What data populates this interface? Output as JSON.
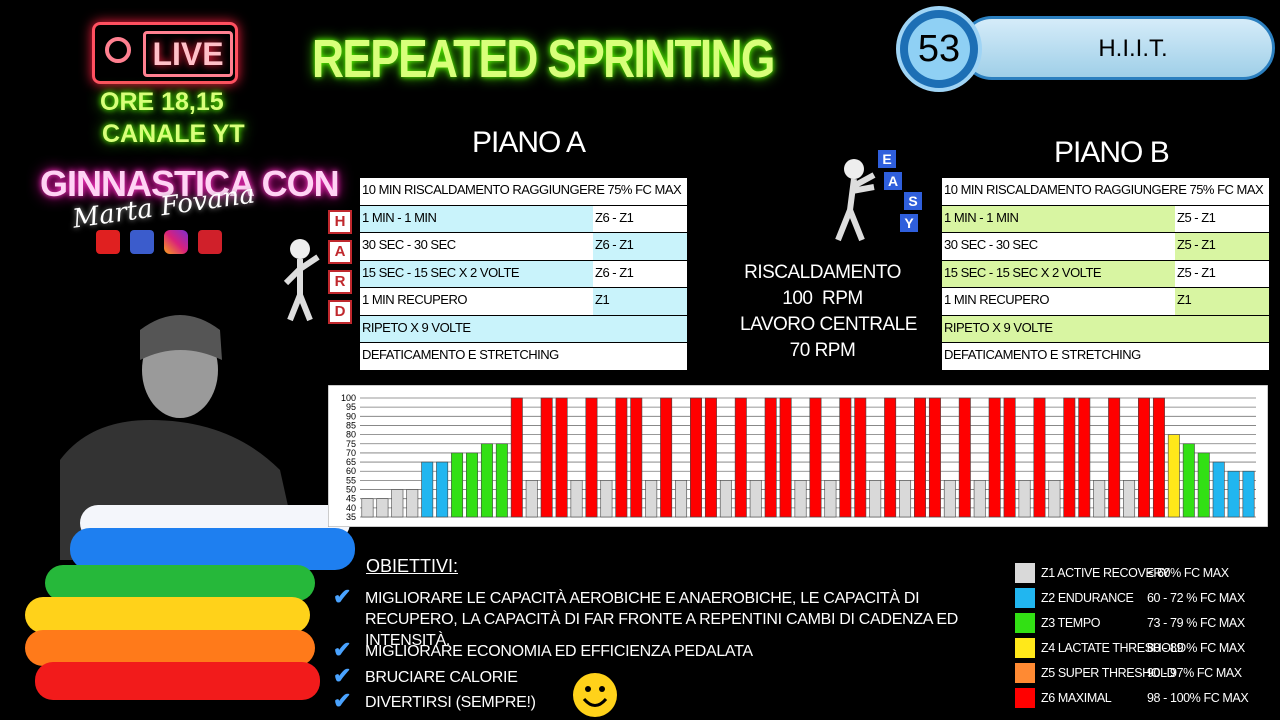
{
  "badge": {
    "live": "LIVE",
    "schedule": [
      "ORE 18,15",
      "CANALE YT"
    ],
    "show": "GINNASTICA CON",
    "host": "Marta Fovana"
  },
  "header": {
    "title": "REPEATED SPRINTING",
    "episode": "53",
    "tag": "H.I.I.T."
  },
  "plans": [
    {
      "title": "PIANO A",
      "color": "#c9f3fb",
      "rows": [
        [
          "10 MIN RISCALDAMENTO RAGGIUNGERE 75% FC MAX"
        ],
        [
          "1 MIN - 1 MIN",
          "Z6 - Z1"
        ],
        [
          "30 SEC - 30 SEC",
          "Z6 - Z1"
        ],
        [
          "15 SEC - 15 SEC X 2 VOLTE",
          "Z6 - Z1"
        ],
        [
          "1 MIN RECUPERO",
          "Z1"
        ],
        [
          "RIPETO X 9 VOLTE"
        ],
        [
          "DEFATICAMENTO E STRETCHING"
        ]
      ]
    },
    {
      "title": "PIANO B",
      "color": "#d8f5a2",
      "rows": [
        [
          "10 MIN RISCALDAMENTO RAGGIUNGERE 75% FC MAX"
        ],
        [
          "1 MIN - 1 MIN",
          "Z5 - Z1"
        ],
        [
          "30 SEC - 30 SEC",
          "Z5 - Z1"
        ],
        [
          "15 SEC - 15 SEC X 2 VOLTE",
          "Z5 - Z1"
        ],
        [
          "1 MIN RECUPERO",
          "Z1"
        ],
        [
          "RIPETO X 9 VOLTE"
        ],
        [
          "DEFATICAMENTO E STRETCHING"
        ]
      ]
    }
  ],
  "hard": [
    "H",
    "A",
    "R",
    "D"
  ],
  "easy": [
    "E",
    "A",
    "S",
    "Y"
  ],
  "cadence": [
    "RISCALDAMENTO",
    "100  RPM",
    "LAVORO CENTRALE",
    "70 RPM"
  ],
  "goals": {
    "title": "OBIETTIVI:",
    "items": [
      "MIGLIORARE LE CAPACITÀ AEROBICHE E ANAEROBICHE, LE CAPACITÀ DI RECUPERO, LA CAPACITÀ DI FAR FRONTE A REPENTINI CAMBI DI CADENZA ED INTENSITÀ.",
      "MIGLIORARE ECONOMIA ED EFFICIENZA PEDALATA",
      "BRUCIARE CALORIE",
      "DIVERTIRSI (SEMPRE!)"
    ]
  },
  "legend": [
    {
      "color": "#d9d9d9",
      "zone": "Z1 ACTIVE RECOVERY",
      "range": "< 60% FC MAX"
    },
    {
      "color": "#21b6f0",
      "zone": "Z2 ENDURANCE",
      "range": "60 - 72 % FC MAX"
    },
    {
      "color": "#32e014",
      "zone": "Z3 TEMPO",
      "range": "73 - 79 % FC MAX"
    },
    {
      "color": "#ffe81a",
      "zone": "Z4 LACTATE THRESHOLD",
      "range": "80 - 89 % FC MAX"
    },
    {
      "color": "#ff8a33",
      "zone": "Z5 SUPER THRESHOLD",
      "range": "90 - 97% FC MAX"
    },
    {
      "color": "#ff0000",
      "zone": "Z6 MAXIMAL",
      "range": "98 - 100% FC MAX"
    }
  ],
  "chart_data": {
    "type": "bar",
    "values": [
      45,
      45,
      50,
      50,
      65,
      65,
      70,
      70,
      75,
      75,
      100,
      55,
      100,
      100,
      55,
      100,
      55,
      100,
      100,
      55,
      100,
      55,
      100,
      100,
      55,
      100,
      55,
      100,
      100,
      55,
      100,
      55,
      100,
      100,
      55,
      100,
      55,
      100,
      100,
      55,
      100,
      55,
      100,
      100,
      55,
      100,
      55,
      100,
      100,
      55,
      100,
      55,
      100,
      100,
      80,
      75,
      70,
      65,
      60,
      60
    ],
    "colors": [
      "#d9d9d9",
      "#d9d9d9",
      "#d9d9d9",
      "#d9d9d9",
      "#21b6f0",
      "#21b6f0",
      "#32e014",
      "#32e014",
      "#32e014",
      "#32e014",
      "#ff0000",
      "#d9d9d9",
      "#ff0000",
      "#ff0000",
      "#d9d9d9",
      "#ff0000",
      "#d9d9d9",
      "#ff0000",
      "#ff0000",
      "#d9d9d9",
      "#ff0000",
      "#d9d9d9",
      "#ff0000",
      "#ff0000",
      "#d9d9d9",
      "#ff0000",
      "#d9d9d9",
      "#ff0000",
      "#ff0000",
      "#d9d9d9",
      "#ff0000",
      "#d9d9d9",
      "#ff0000",
      "#ff0000",
      "#d9d9d9",
      "#ff0000",
      "#d9d9d9",
      "#ff0000",
      "#ff0000",
      "#d9d9d9",
      "#ff0000",
      "#d9d9d9",
      "#ff0000",
      "#ff0000",
      "#d9d9d9",
      "#ff0000",
      "#d9d9d9",
      "#ff0000",
      "#ff0000",
      "#d9d9d9",
      "#ff0000",
      "#d9d9d9",
      "#ff0000",
      "#ff0000",
      "#ffe81a",
      "#32e014",
      "#32e014",
      "#21b6f0",
      "#21b6f0",
      "#21b6f0"
    ],
    "ylim": [
      35,
      100
    ],
    "yticks": [
      35,
      40,
      45,
      50,
      55,
      60,
      65,
      70,
      75,
      80,
      85,
      90,
      95,
      100
    ],
    "grid": true
  }
}
